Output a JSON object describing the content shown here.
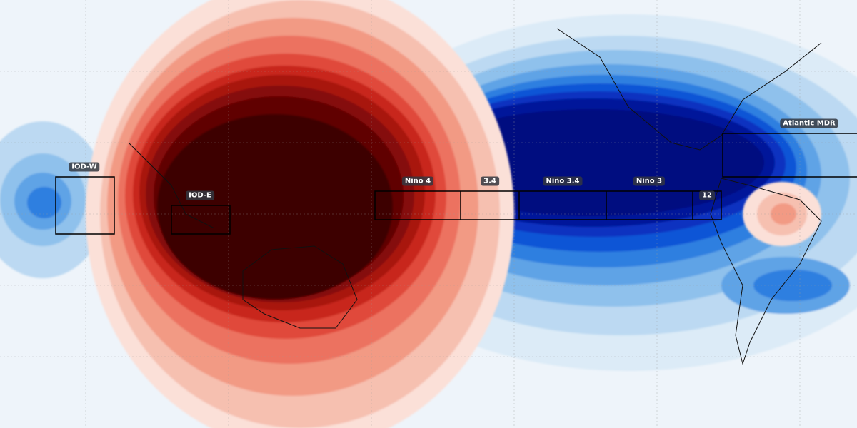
{
  "regions": [
    {
      "label": "IOD-W"
    },
    {
      "label": "IOD-E"
    },
    {
      "label": "Niño 4"
    },
    {
      "label": "3.4"
    },
    {
      "label": "Niño 3.4"
    },
    {
      "label": "Niño 3"
    },
    {
      "label": "12"
    },
    {
      "label": "Atlantic MDR"
    }
  ]
}
